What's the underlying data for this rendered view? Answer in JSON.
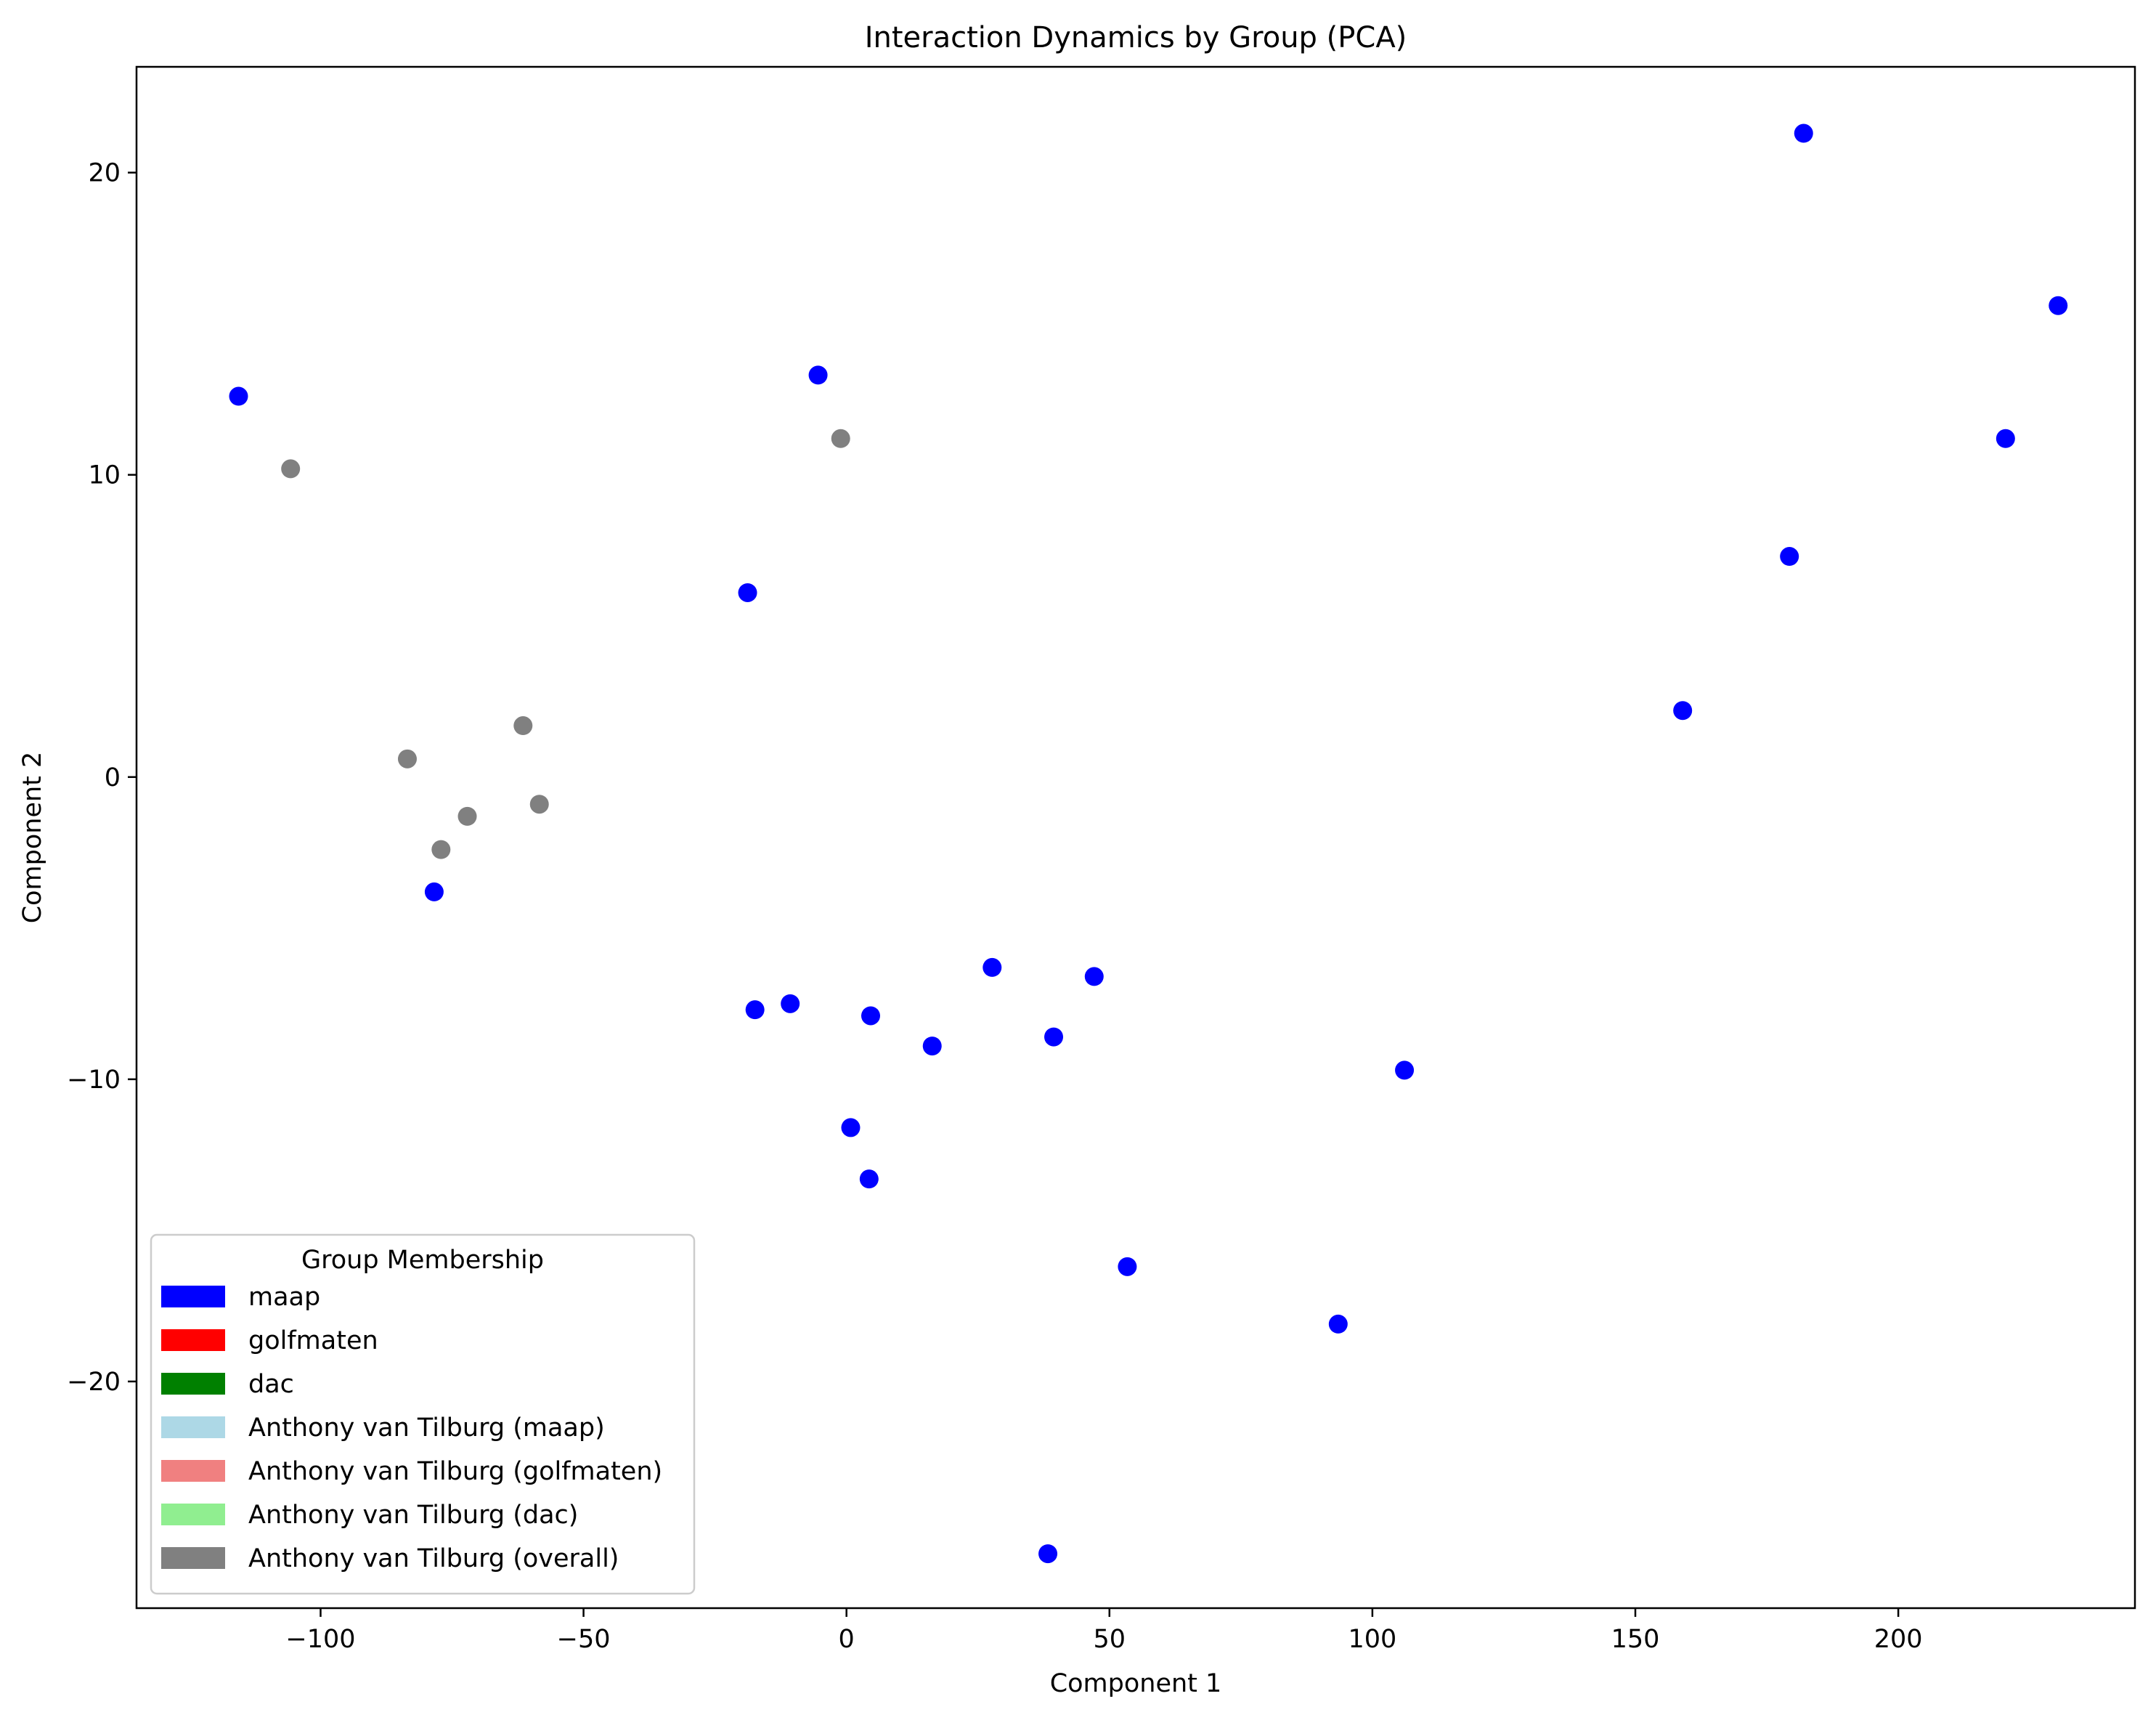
{
  "chart_data": {
    "type": "scatter",
    "title": "Interaction Dynamics by Group (PCA)",
    "xlabel": "Component 1",
    "ylabel": "Component 2",
    "xlim": [
      -135,
      245
    ],
    "ylim": [
      -27.5,
      23.5
    ],
    "xticks": [
      -100,
      -50,
      0,
      50,
      100,
      150,
      200
    ],
    "yticks": [
      -20,
      -10,
      0,
      10,
      20
    ],
    "grid": false,
    "legend": {
      "title": "Group Membership",
      "placement": "lower-left",
      "entries": [
        {
          "label": "maap",
          "color": "#0000ff"
        },
        {
          "label": "golfmaten",
          "color": "#ff0000"
        },
        {
          "label": "dac",
          "color": "#008000"
        },
        {
          "label": "Anthony van Tilburg (maap)",
          "color": "#add8e6"
        },
        {
          "label": "Anthony van Tilburg (golfmaten)",
          "color": "#f08080"
        },
        {
          "label": "Anthony van Tilburg (dac)",
          "color": "#90ee90"
        },
        {
          "label": "Anthony van Tilburg (overall)",
          "color": "#808080"
        }
      ]
    },
    "series": [
      {
        "name": "maap",
        "color": "#0000ff",
        "points": [
          [
            -115.6,
            12.6
          ],
          [
            -5.4,
            13.3
          ],
          [
            -18.8,
            6.1
          ],
          [
            -78.4,
            -3.8
          ],
          [
            -17.4,
            -7.7
          ],
          [
            -10.7,
            -7.5
          ],
          [
            4.6,
            -7.9
          ],
          [
            16.3,
            -8.9
          ],
          [
            27.7,
            -6.3
          ],
          [
            39.4,
            -8.6
          ],
          [
            47.1,
            -6.6
          ],
          [
            0.8,
            -11.6
          ],
          [
            4.3,
            -13.3
          ],
          [
            53.4,
            -16.2
          ],
          [
            106.1,
            -9.7
          ],
          [
            93.5,
            -18.1
          ],
          [
            38.3,
            -25.7
          ],
          [
            159.0,
            2.2
          ],
          [
            179.3,
            7.3
          ],
          [
            182.0,
            21.3
          ],
          [
            220.4,
            11.2
          ],
          [
            230.4,
            15.6
          ]
        ]
      },
      {
        "name": "Anthony van Tilburg (overall)",
        "color": "#808080",
        "points": [
          [
            -105.7,
            10.2
          ],
          [
            -1.1,
            11.2
          ],
          [
            -61.5,
            1.7
          ],
          [
            -83.5,
            0.6
          ],
          [
            -72.1,
            -1.3
          ],
          [
            -58.4,
            -0.9
          ],
          [
            -77.1,
            -2.4
          ]
        ]
      }
    ]
  }
}
